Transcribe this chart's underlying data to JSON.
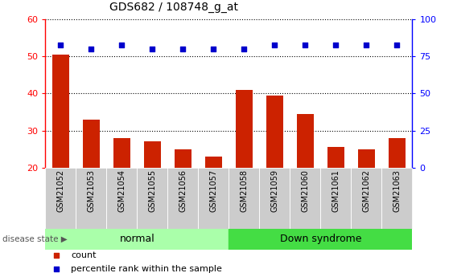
{
  "title": "GDS682 / 108748_g_at",
  "samples": [
    "GSM21052",
    "GSM21053",
    "GSM21054",
    "GSM21055",
    "GSM21056",
    "GSM21057",
    "GSM21058",
    "GSM21059",
    "GSM21060",
    "GSM21061",
    "GSM21062",
    "GSM21063"
  ],
  "counts": [
    50.5,
    33,
    28,
    27,
    25,
    23,
    41,
    39.5,
    34.5,
    25.5,
    25,
    28
  ],
  "percentiles": [
    83,
    80,
    83,
    80,
    80,
    80,
    80,
    83,
    83,
    83,
    83,
    83
  ],
  "normal_group": [
    0,
    1,
    2,
    3,
    4,
    5
  ],
  "downsyndrome_group": [
    6,
    7,
    8,
    9,
    10,
    11
  ],
  "ylim_left": [
    20,
    60
  ],
  "ylim_right": [
    0,
    100
  ],
  "yticks_left": [
    20,
    30,
    40,
    50,
    60
  ],
  "yticks_right": [
    0,
    25,
    50,
    75,
    100
  ],
  "bar_color": "#cc2200",
  "dot_color": "#0000cc",
  "normal_bg": "#aaffaa",
  "downsyn_bg": "#44dd44",
  "label_bg": "#cccccc",
  "legend_count_label": "count",
  "legend_pct_label": "percentile rank within the sample",
  "disease_state_label": "disease state",
  "normal_label": "normal",
  "downsyn_label": "Down syndrome"
}
